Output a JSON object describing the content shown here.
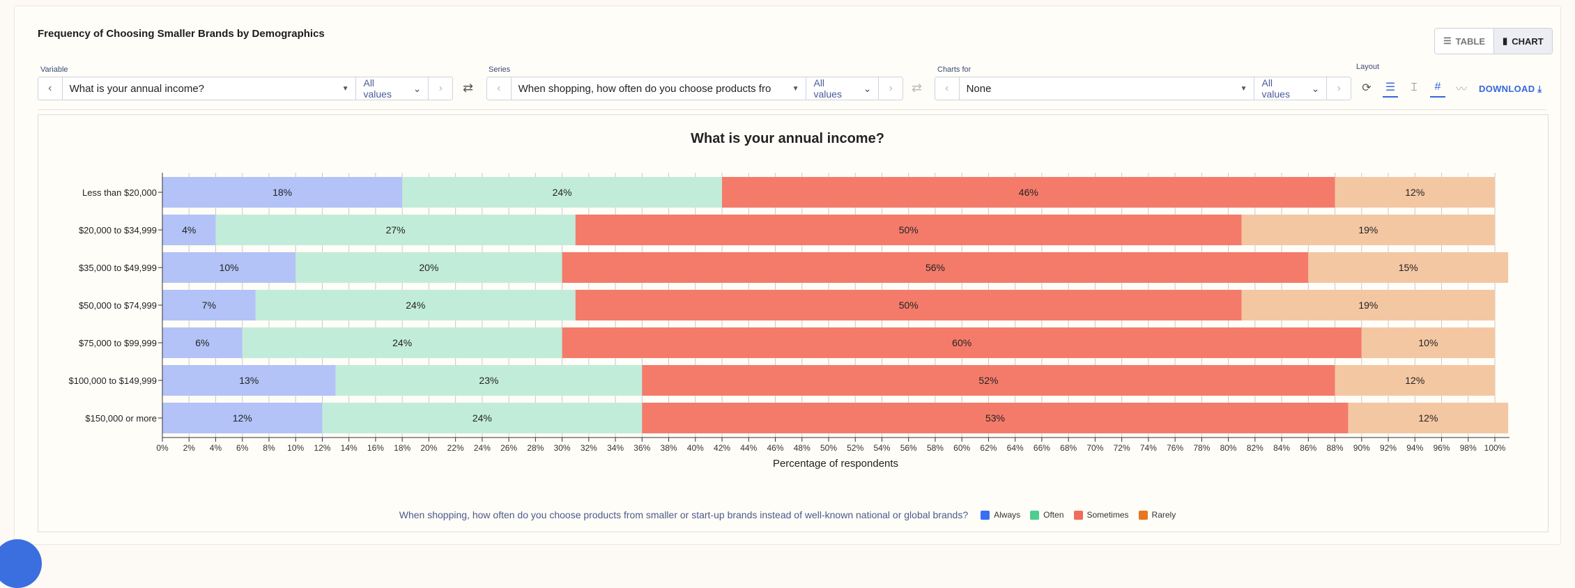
{
  "header": {
    "title": "Frequency of Choosing Smaller Brands by Demographics",
    "table_label": "TABLE",
    "chart_label": "CHART"
  },
  "controls": {
    "variable": {
      "label": "Variable",
      "value": "What is your annual income?",
      "filter": "All values"
    },
    "series": {
      "label": "Series",
      "value": "When shopping, how often do you choose products fro",
      "filter": "All values"
    },
    "charts_for": {
      "label": "Charts for",
      "value": "None",
      "filter": "All values"
    },
    "layout": {
      "label": "Layout"
    },
    "download_label": "DOWNLOAD"
  },
  "legend": {
    "question": "When shopping, how often do you choose products from smaller or start-up brands instead of well-known national or global brands?"
  },
  "colors": {
    "Always": "#b3c3f7",
    "Often": "#c2ecda",
    "Sometimes": "#f47b6a",
    "Rarely": "#f4c7a3",
    "legend_Always": "#3a6ff0",
    "legend_Often": "#4fcc90",
    "legend_Sometimes": "#f06b5c",
    "legend_Rarely": "#e8761f"
  },
  "chart_data": {
    "type": "bar",
    "orientation": "horizontal",
    "stacked": true,
    "title": "What is your annual income?",
    "xlabel": "Percentage of respondents",
    "xlim": [
      0,
      100
    ],
    "categories": [
      "Less than $20,000",
      "$20,000 to $34,999",
      "$35,000 to $49,999",
      "$50,000 to $74,999",
      "$75,000 to $99,999",
      "$100,000 to $149,999",
      "$150,000 or more"
    ],
    "series": [
      {
        "name": "Always",
        "values": [
          18,
          4,
          10,
          7,
          6,
          13,
          12
        ]
      },
      {
        "name": "Often",
        "values": [
          24,
          27,
          20,
          24,
          24,
          23,
          24
        ]
      },
      {
        "name": "Sometimes",
        "values": [
          46,
          50,
          56,
          50,
          60,
          52,
          53
        ]
      },
      {
        "name": "Rarely",
        "values": [
          12,
          19,
          15,
          19,
          10,
          12,
          12
        ]
      }
    ],
    "grid": true,
    "legend_position": "bottom"
  }
}
